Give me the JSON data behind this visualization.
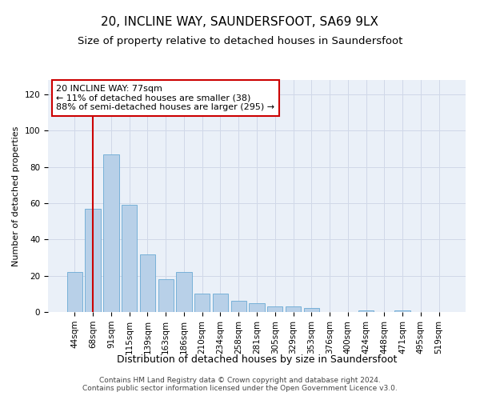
{
  "title": "20, INCLINE WAY, SAUNDERSFOOT, SA69 9LX",
  "subtitle": "Size of property relative to detached houses in Saundersfoot",
  "xlabel": "Distribution of detached houses by size in Saundersfoot",
  "ylabel": "Number of detached properties",
  "bar_values": [
    22,
    57,
    87,
    59,
    32,
    18,
    22,
    10,
    10,
    6,
    5,
    3,
    3,
    2,
    0,
    0,
    1,
    0,
    1,
    0
  ],
  "bar_labels": [
    "44sqm",
    "68sqm",
    "91sqm",
    "115sqm",
    "139sqm",
    "163sqm",
    "186sqm",
    "210sqm",
    "234sqm",
    "258sqm",
    "281sqm",
    "305sqm",
    "329sqm",
    "353sqm",
    "376sqm",
    "400sqm",
    "424sqm",
    "448sqm",
    "471sqm",
    "495sqm",
    "519sqm"
  ],
  "bar_color": "#b8d0e8",
  "bar_edge_color": "#6aaad4",
  "grid_color": "#d0d8e8",
  "vline_color": "#cc0000",
  "vline_pos": 1.5,
  "annotation_text": "20 INCLINE WAY: 77sqm\n← 11% of detached houses are smaller (38)\n88% of semi-detached houses are larger (295) →",
  "annotation_box_facecolor": "#ffffff",
  "annotation_box_edgecolor": "#cc0000",
  "ylim": [
    0,
    128
  ],
  "yticks": [
    0,
    20,
    40,
    60,
    80,
    100,
    120
  ],
  "footer_text": "Contains HM Land Registry data © Crown copyright and database right 2024.\nContains public sector information licensed under the Open Government Licence v3.0.",
  "background_color": "#eaf0f8",
  "title_fontsize": 11,
  "subtitle_fontsize": 9.5,
  "xlabel_fontsize": 9,
  "ylabel_fontsize": 8,
  "tick_fontsize": 7.5,
  "annotation_fontsize": 8,
  "footer_fontsize": 6.5
}
